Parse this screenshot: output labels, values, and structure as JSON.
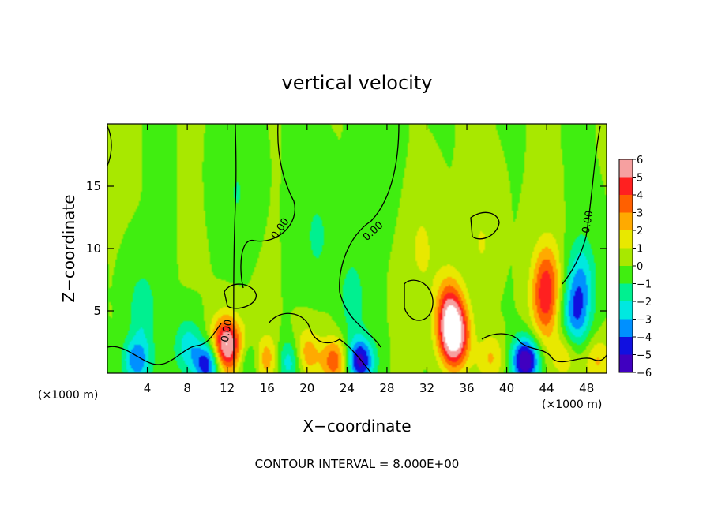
{
  "chart_data": {
    "type": "heatmap",
    "title": "vertical velocity",
    "xlabel": "X−coordinate",
    "ylabel": "Z−coordinate",
    "x_unit_left": "(×1000 m)",
    "x_unit_right": "(×1000 m)",
    "xlim": [
      0,
      50
    ],
    "ylim": [
      0,
      20
    ],
    "x_ticks": [
      4,
      8,
      12,
      16,
      20,
      24,
      28,
      32,
      36,
      40,
      44,
      48
    ],
    "y_ticks": [
      5,
      10,
      15
    ],
    "colorbar": {
      "ticks": [
        "6",
        "5",
        "4",
        "3",
        "2",
        "1",
        "0",
        "−1",
        "−2",
        "−3",
        "−4",
        "−5",
        "−6"
      ],
      "colors": [
        "#f6a0a0",
        "#ff2020",
        "#ff6000",
        "#ffaa00",
        "#e8e800",
        "#a8e800",
        "#40ee10",
        "#00f090",
        "#00e8e0",
        "#0090ff",
        "#1010e0",
        "#4000c0"
      ]
    },
    "contour_level_labels": [
      "0.00",
      "0.00",
      "0.00",
      "0.00"
    ],
    "contour_interval_text": "CONTOUR INTERVAL = 8.000E+00",
    "features": [
      {
        "x": 11.8,
        "z": 2.2,
        "w": 6
      },
      {
        "x": 34.8,
        "z": 3.0,
        "w": 6
      },
      {
        "x": 34.2,
        "z": 4.8,
        "w": 4
      },
      {
        "x": 43.8,
        "z": 6.0,
        "w": 3.5
      },
      {
        "x": 44.2,
        "z": 7.8,
        "w": 1.5
      },
      {
        "x": 15.8,
        "z": 1.2,
        "w": 3
      },
      {
        "x": 19.8,
        "z": 1.5,
        "w": 3
      },
      {
        "x": 22.8,
        "z": 1.0,
        "w": 3.5
      },
      {
        "x": 9.2,
        "z": 1.2,
        "w": 2
      },
      {
        "x": 13.4,
        "z": 1.8,
        "w": 2
      },
      {
        "x": 38.5,
        "z": 1.2,
        "w": 2
      },
      {
        "x": 46.0,
        "z": 1.5,
        "w": 2
      },
      {
        "x": 49.0,
        "z": 1.0,
        "w": 2
      },
      {
        "x": 31.5,
        "z": 10.0,
        "w": 1.2
      },
      {
        "x": 37.5,
        "z": 10.5,
        "w": 1.0
      },
      {
        "x": 2.9,
        "z": 1.0,
        "w": -3.5
      },
      {
        "x": 9.9,
        "z": 0.8,
        "w": -6
      },
      {
        "x": 8.2,
        "z": 2.0,
        "w": -3
      },
      {
        "x": 14.2,
        "z": 1.2,
        "w": -3
      },
      {
        "x": 18.3,
        "z": 1.0,
        "w": -3
      },
      {
        "x": 25.3,
        "z": 1.0,
        "w": -5
      },
      {
        "x": 41.9,
        "z": 1.0,
        "w": -6
      },
      {
        "x": 46.8,
        "z": 4.5,
        "w": -3
      },
      {
        "x": 47.5,
        "z": 7.5,
        "w": -2.5
      },
      {
        "x": 3.5,
        "z": 5.0,
        "w": -1.8
      },
      {
        "x": 21.0,
        "z": 11.0,
        "w": -1.2
      },
      {
        "x": 24.5,
        "z": 6.0,
        "w": -1.5
      },
      {
        "x": 13.0,
        "z": 14.5,
        "w": -1.0
      },
      {
        "x": 27.0,
        "z": 16.0,
        "w": -0.8
      }
    ]
  }
}
